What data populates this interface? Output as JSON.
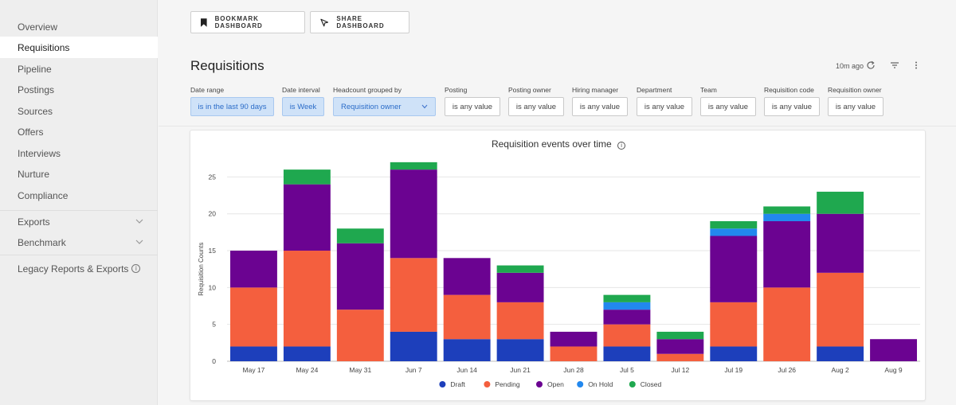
{
  "sidebar": {
    "items": [
      {
        "label": "Overview"
      },
      {
        "label": "Requisitions"
      },
      {
        "label": "Pipeline"
      },
      {
        "label": "Postings"
      },
      {
        "label": "Sources"
      },
      {
        "label": "Offers"
      },
      {
        "label": "Interviews"
      },
      {
        "label": "Nurture"
      },
      {
        "label": "Compliance"
      },
      {
        "label": "Exports"
      },
      {
        "label": "Benchmark"
      },
      {
        "label": "Legacy Reports & Exports"
      }
    ],
    "active": "Requisitions",
    "info_glyph": "i"
  },
  "toolbar": {
    "bookmark_label": "BOOKMARK DASHBOARD",
    "share_label": "SHARE DASHBOARD"
  },
  "header": {
    "title": "Requisitions",
    "updated": "10m ago",
    "icons": [
      "refresh-icon",
      "filter-icon",
      "more-vertical-icon"
    ]
  },
  "filters": [
    {
      "label": "Date range",
      "value": "is in the last 90 days"
    },
    {
      "label": "Date interval",
      "value": "is Week"
    },
    {
      "label": "Headcount grouped by",
      "value": "Requisition owner"
    },
    {
      "label": "Posting",
      "value": "is any value"
    },
    {
      "label": "Posting owner",
      "value": "is any value"
    },
    {
      "label": "Hiring manager",
      "value": "is any value"
    },
    {
      "label": "Department",
      "value": "is any value"
    },
    {
      "label": "Team",
      "value": "is any value"
    },
    {
      "label": "Requisition code",
      "value": "is any value"
    },
    {
      "label": "Requisition owner",
      "value": "is any value"
    }
  ],
  "colors": {
    "selected_bg": "#cfe2f8",
    "selected_text": "#2b6cc8",
    "active_nav_bg": "#ffffff"
  },
  "chart": {
    "title": "Requisition events over time",
    "info_glyph": "i"
  },
  "chart_data": {
    "type": "bar",
    "stacked": true,
    "title": "Requisition events over time",
    "xlabel": "",
    "ylabel": "Requisition Counts",
    "ylim": [
      0,
      25
    ],
    "yticks": [
      0,
      5,
      10,
      15,
      20,
      25
    ],
    "grid": true,
    "legend_position": "bottom",
    "categories": [
      "May 17",
      "May 24",
      "May 31",
      "Jun 7",
      "Jun 14",
      "Jun 21",
      "Jun 28",
      "Jul 5",
      "Jul 12",
      "Jul 19",
      "Jul 26",
      "Aug 2",
      "Aug 9"
    ],
    "series": [
      {
        "name": "Draft",
        "color": "#1d3fbb",
        "values": [
          2,
          2,
          0,
          4,
          3,
          3,
          0,
          2,
          0,
          2,
          0,
          2,
          0
        ]
      },
      {
        "name": "Pending",
        "color": "#f45f3e",
        "values": [
          8,
          13,
          7,
          10,
          6,
          5,
          2,
          3,
          1,
          6,
          10,
          10,
          0
        ]
      },
      {
        "name": "Open",
        "color": "#6b0391",
        "values": [
          5,
          9,
          9,
          12,
          5,
          4,
          2,
          2,
          2,
          9,
          9,
          8,
          3
        ]
      },
      {
        "name": "On Hold",
        "color": "#2288ee",
        "values": [
          0,
          0,
          0,
          0,
          0,
          0,
          0,
          1,
          0,
          1,
          1,
          0,
          0
        ]
      },
      {
        "name": "Closed",
        "color": "#1fa84f",
        "values": [
          0,
          2,
          2,
          1,
          0,
          1,
          0,
          1,
          1,
          1,
          1,
          3,
          0
        ]
      }
    ]
  }
}
